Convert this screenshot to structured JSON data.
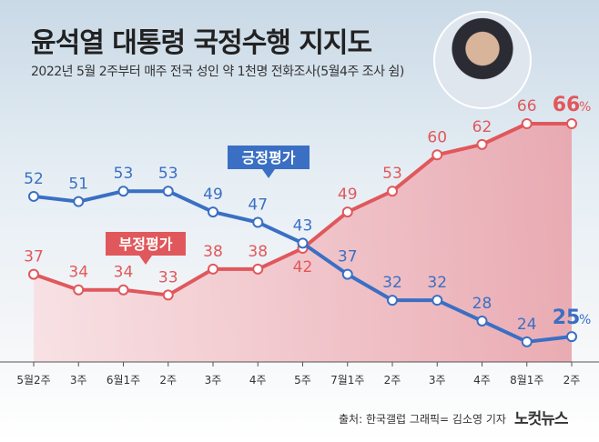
{
  "title": "윤석열 대통령 국정수행 지지도",
  "subtitle": "2022년 5월 2주부터 매주 전국 성인 약 1천명 전화조사(5월4주 조사 쉼)",
  "source": "출처: 한국갤럽   그래픽= 김소영 기자",
  "logo": "노컷뉴스",
  "chart_data": {
    "type": "line",
    "categories": [
      "5월2주",
      "3주",
      "6월1주",
      "2주",
      "3주",
      "4주",
      "5주",
      "7월1주",
      "2주",
      "3주",
      "4주",
      "8월1주",
      "2주"
    ],
    "series": [
      {
        "name": "긍정평가",
        "color": "#3a6fc4",
        "values": [
          52,
          51,
          53,
          53,
          49,
          47,
          43,
          37,
          32,
          32,
          28,
          24,
          25
        ]
      },
      {
        "name": "부정평가",
        "color": "#e0585c",
        "values": [
          37,
          34,
          34,
          33,
          38,
          38,
          42,
          49,
          53,
          60,
          62,
          66,
          66
        ]
      }
    ],
    "last_value_suffix": "%",
    "ylim": [
      20,
      70
    ],
    "grid": false
  }
}
